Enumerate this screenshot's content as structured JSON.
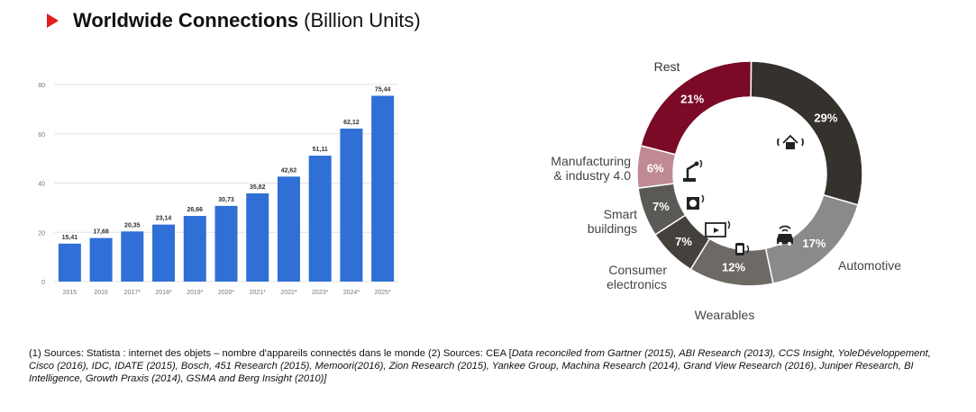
{
  "header": {
    "title": "Worldwide Connections",
    "unit": "(Billion Units)"
  },
  "chart_data": [
    {
      "type": "bar",
      "categories": [
        "2015",
        "2016",
        "2017*",
        "2018*",
        "2019*",
        "2020*",
        "2021*",
        "2022*",
        "2023*",
        "2024*",
        "2025*"
      ],
      "values": [
        15.41,
        17.68,
        20.35,
        23.14,
        26.66,
        30.73,
        35.82,
        42.62,
        51.11,
        62.12,
        75.44
      ],
      "value_labels": [
        "15,41",
        "17,68",
        "20,35",
        "23,14",
        "26,66",
        "30,73",
        "35,82",
        "42,62",
        "51,11",
        "62,12",
        "75,44"
      ],
      "yticks": [
        "0",
        "20",
        "40",
        "60",
        "80"
      ],
      "ylim": [
        0,
        80
      ],
      "grid": true,
      "bar_color": "#2f6fd6"
    },
    {
      "type": "pie",
      "style": "donut",
      "slices": [
        {
          "label": "Rest",
          "value": 21,
          "value_label": "21%",
          "color": "#7a0a26"
        },
        {
          "label": "",
          "value": 29,
          "value_label": "29%",
          "color": "#35322e"
        },
        {
          "label": "Automotive",
          "value": 17,
          "value_label": "17%",
          "color": "#8a8a8a"
        },
        {
          "label": "Wearables",
          "value": 12,
          "value_label": "12%",
          "color": "#6d6964"
        },
        {
          "label": "Consumer electronics",
          "value": 7,
          "value_label": "7%",
          "color": "#45423e"
        },
        {
          "label": "Smart buildings",
          "value": 7,
          "value_label": "7%",
          "color": "#5b5955"
        },
        {
          "label": "Manufacturing & industry 4.0",
          "value": 6,
          "value_label": "6%",
          "color": "#c08a94"
        }
      ],
      "icons": [
        "smart-home-icon",
        "connected-car-icon",
        "smartwatch-icon",
        "connected-tv-icon",
        "smart-building-icon",
        "industrial-robot-icon"
      ]
    }
  ],
  "outer_labels": {
    "rest": "Rest",
    "manufacturing_1": "Manufacturing",
    "manufacturing_2": "& industry 4.0",
    "smart_1": "Smart",
    "smart_2": "buildings",
    "consumer_1": "Consumer",
    "consumer_2": "electronics",
    "wearables": "Wearables",
    "automotive": "Automotive"
  },
  "footnote": {
    "part1": "(1) Sources: Statista : internet des objets – nombre d'appareils connectés dans le monde (2) Sources: CEA [",
    "part2": "Data reconciled from Gartner (2015), ABI Research (2013), CCS Insight, YoleDéveloppement, Cisco (2016), IDC, IDATE (2015), Bosch, 451 Research (2015), Memoori(2016), Zion Research (2015), Yankee Group, Machina Research (2014), Grand View Research (2016), Juniper Research, BI Intelligence, Growth Praxis (2014), GSMA and Berg Insight (2010)]"
  }
}
